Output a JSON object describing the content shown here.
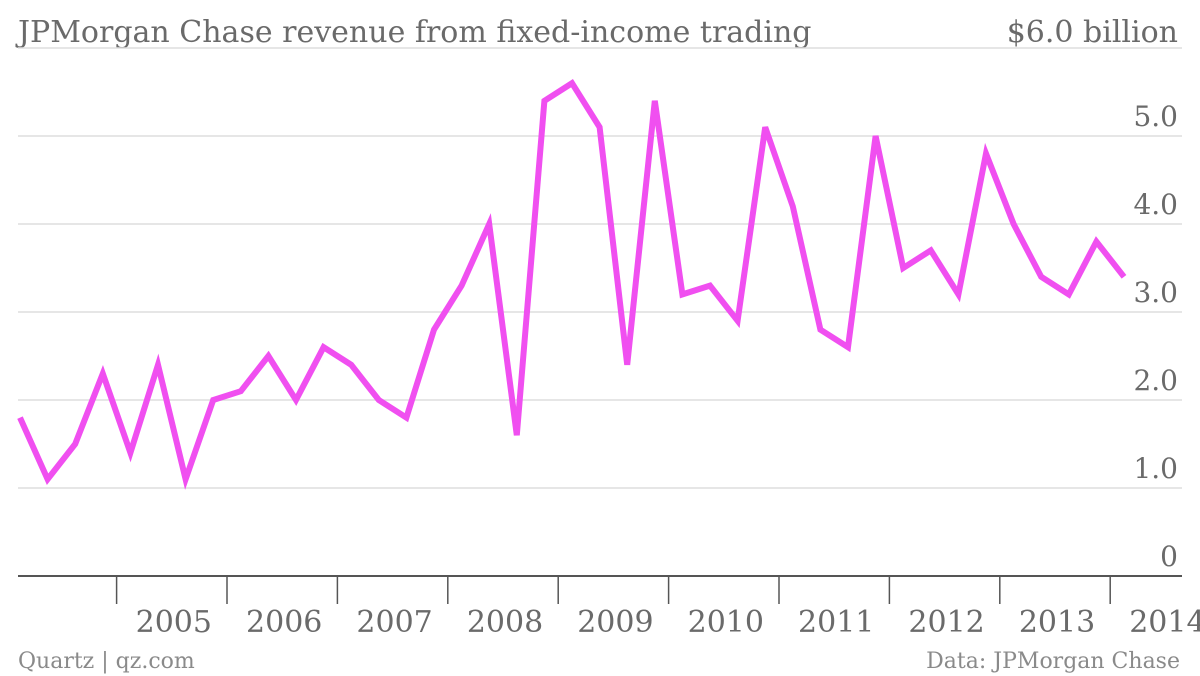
{
  "chart_data": {
    "type": "line",
    "title": "JPMorgan Chase revenue from fixed-income trading",
    "y_top_label": "$6.0 billion",
    "ylim": [
      0,
      6
    ],
    "yticks": [
      {
        "value": 0,
        "label": "0"
      },
      {
        "value": 1,
        "label": "1.0"
      },
      {
        "value": 2,
        "label": "2.0"
      },
      {
        "value": 3,
        "label": "3.0"
      },
      {
        "value": 4,
        "label": "4.0"
      },
      {
        "value": 5,
        "label": "5.0"
      }
    ],
    "xticks": [
      "2005",
      "2006",
      "2007",
      "2008",
      "2009",
      "2010",
      "2011",
      "2012",
      "2013",
      "2014"
    ],
    "grid": true,
    "color": "#f04ff0",
    "series": [
      {
        "x": [
          "2004 Q1",
          "2004 Q2",
          "2004 Q3",
          "2004 Q4",
          "2005 Q1",
          "2005 Q2",
          "2005 Q3",
          "2005 Q4",
          "2006 Q1",
          "2006 Q2",
          "2006 Q3",
          "2006 Q4",
          "2007 Q1",
          "2007 Q2",
          "2007 Q3",
          "2007 Q4",
          "2008 Q1",
          "2008 Q2",
          "2008 Q3",
          "2008 Q4",
          "2009 Q1",
          "2009 Q2",
          "2009 Q3",
          "2009 Q4",
          "2010 Q1",
          "2010 Q2",
          "2010 Q3",
          "2010 Q4",
          "2011 Q1",
          "2011 Q2",
          "2011 Q3",
          "2011 Q4",
          "2012 Q1",
          "2012 Q2",
          "2012 Q3",
          "2012 Q4",
          "2013 Q1",
          "2013 Q2",
          "2013 Q3",
          "2013 Q4",
          "2014 Q1",
          "2014 Q2"
        ],
        "values": [
          1.8,
          1.1,
          1.5,
          2.3,
          1.4,
          2.4,
          1.1,
          2.0,
          2.1,
          2.5,
          2.0,
          2.6,
          2.4,
          2.0,
          1.8,
          2.8,
          3.3,
          4.0,
          1.6,
          5.4,
          5.6,
          5.1,
          2.4,
          5.4,
          3.2,
          3.3,
          2.9,
          5.1,
          4.2,
          2.8,
          2.6,
          5.0,
          3.5,
          3.7,
          3.2,
          4.8,
          4.0,
          3.4,
          3.2,
          3.8,
          3.4,
          null
        ]
      }
    ]
  },
  "footer": {
    "source_left": "Quartz | qz.com",
    "source_right": "Data: JPMorgan Chase"
  }
}
